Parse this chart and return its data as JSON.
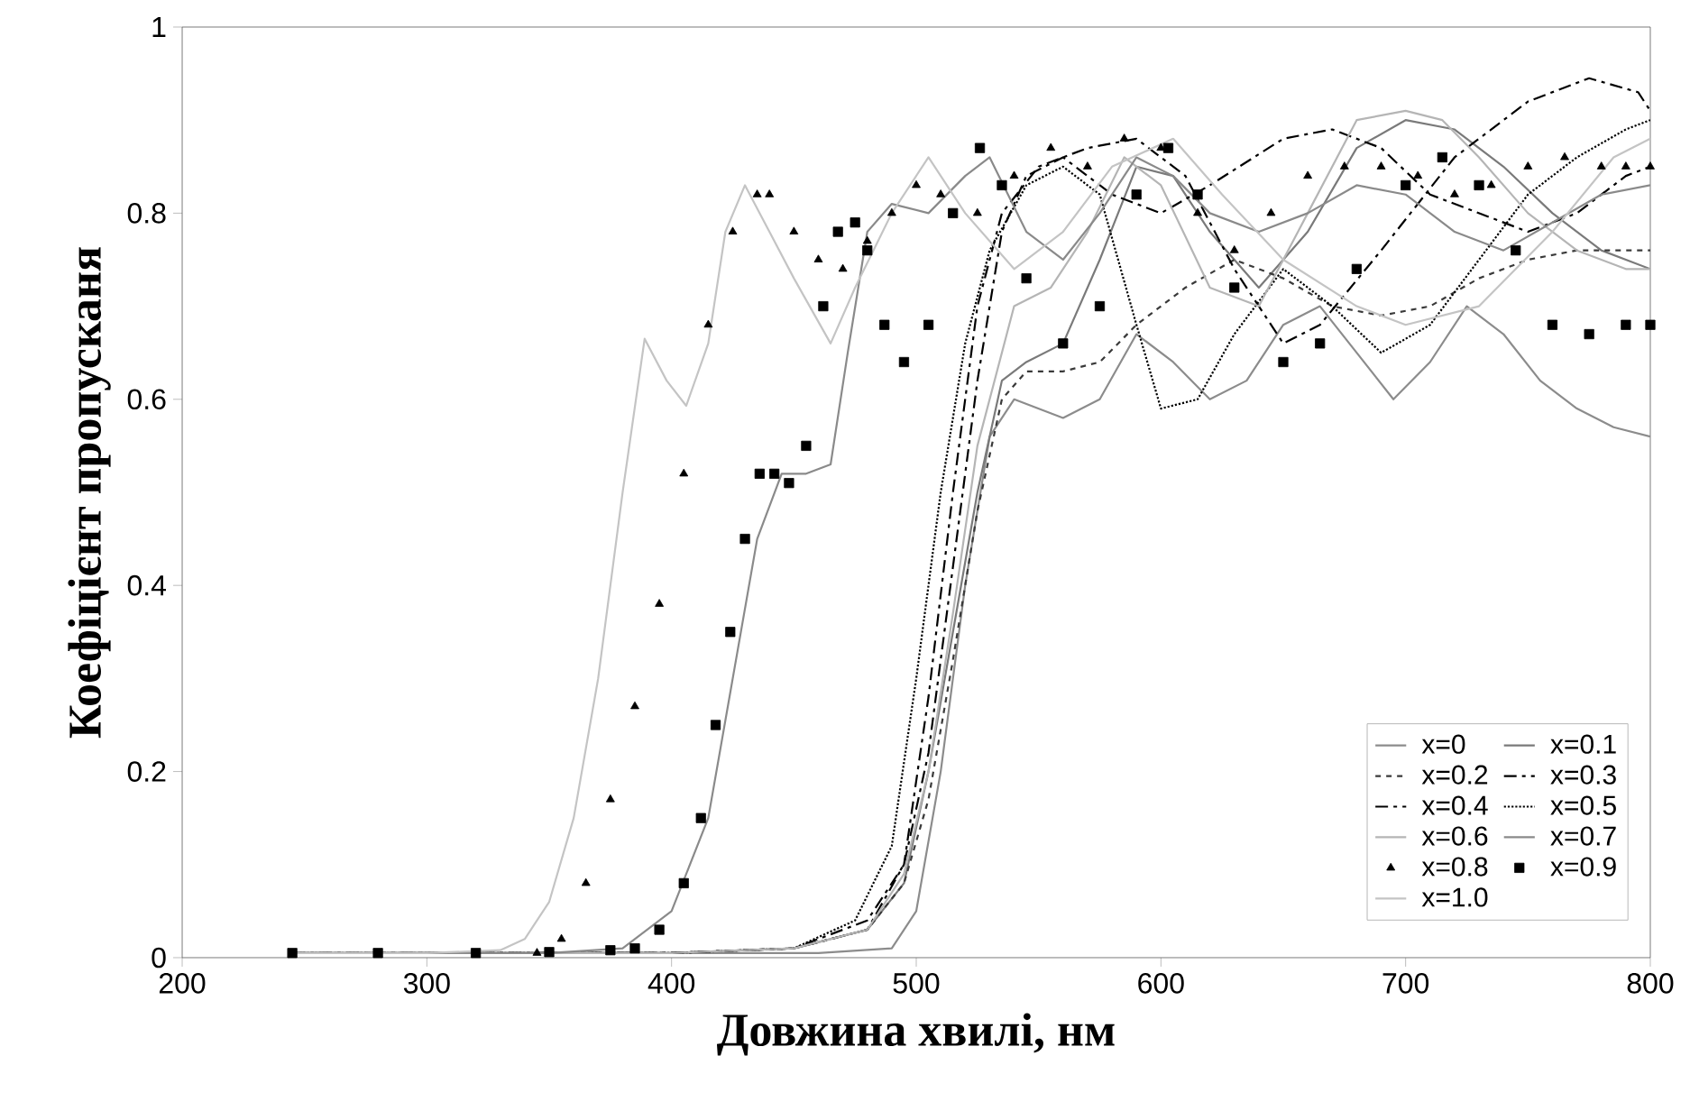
{
  "chart_data": {
    "type": "line",
    "xlabel": "Довжина хвилі, нм",
    "ylabel": "Коефіцієнт пропусканя",
    "xlim": [
      200,
      800
    ],
    "ylim": [
      0,
      1
    ],
    "xticks": [
      200,
      300,
      400,
      500,
      600,
      700,
      800
    ],
    "yticks": [
      0,
      0.2,
      0.4,
      0.6,
      0.8,
      1
    ],
    "legend": "bottom right",
    "series": [
      {
        "name": "x=0",
        "color": "#8c8c8c",
        "line_style": "solid",
        "x": [
          245,
          300,
          400,
          460,
          490,
          500,
          510,
          520,
          530,
          540,
          550,
          560,
          575,
          590,
          605,
          620,
          635,
          650,
          665,
          680,
          695,
          710,
          725,
          740,
          755,
          770,
          785,
          800
        ],
        "values": [
          0.005,
          0.005,
          0.005,
          0.005,
          0.01,
          0.05,
          0.2,
          0.4,
          0.56,
          0.6,
          0.59,
          0.58,
          0.6,
          0.67,
          0.64,
          0.6,
          0.62,
          0.68,
          0.7,
          0.65,
          0.6,
          0.64,
          0.7,
          0.67,
          0.62,
          0.59,
          0.57,
          0.56
        ]
      },
      {
        "name": "x=0.1",
        "color": "#7a7a7a",
        "line_style": "solid",
        "x": [
          245,
          300,
          400,
          450,
          480,
          495,
          505,
          515,
          525,
          535,
          545,
          560,
          575,
          590,
          605,
          620,
          640,
          660,
          680,
          700,
          720,
          740,
          760,
          780,
          800
        ],
        "values": [
          0.005,
          0.005,
          0.005,
          0.01,
          0.03,
          0.08,
          0.2,
          0.35,
          0.5,
          0.62,
          0.64,
          0.66,
          0.75,
          0.85,
          0.84,
          0.78,
          0.72,
          0.78,
          0.87,
          0.9,
          0.89,
          0.85,
          0.8,
          0.76,
          0.74
        ]
      },
      {
        "name": "x=0.2",
        "color": "#3a3a3a",
        "line_style": "dashed",
        "x": [
          245,
          300,
          400,
          450,
          480,
          495,
          505,
          515,
          525,
          535,
          545,
          560,
          575,
          590,
          610,
          630,
          650,
          670,
          690,
          710,
          730,
          750,
          770,
          790,
          800
        ],
        "values": [
          0.005,
          0.005,
          0.005,
          0.01,
          0.03,
          0.08,
          0.17,
          0.32,
          0.48,
          0.6,
          0.63,
          0.63,
          0.64,
          0.68,
          0.72,
          0.75,
          0.73,
          0.7,
          0.69,
          0.7,
          0.73,
          0.75,
          0.76,
          0.76,
          0.76
        ]
      },
      {
        "name": "x=0.3",
        "color": "#000000",
        "line_style": "dashdot",
        "x": [
          245,
          400,
          450,
          480,
          495,
          505,
          515,
          525,
          535,
          545,
          560,
          580,
          600,
          620,
          650,
          670,
          690,
          710,
          730,
          750,
          770,
          790,
          800
        ],
        "values": [
          0.005,
          0.005,
          0.01,
          0.04,
          0.1,
          0.22,
          0.42,
          0.62,
          0.78,
          0.84,
          0.86,
          0.82,
          0.8,
          0.83,
          0.88,
          0.89,
          0.87,
          0.82,
          0.8,
          0.78,
          0.8,
          0.84,
          0.85
        ]
      },
      {
        "name": "x=0.4",
        "color": "#000000",
        "line_style": "dashdot",
        "x": [
          245,
          400,
          450,
          480,
          495,
          505,
          515,
          525,
          535,
          550,
          570,
          590,
          610,
          630,
          650,
          665,
          690,
          720,
          750,
          775,
          795,
          800
        ],
        "values": [
          0.005,
          0.005,
          0.01,
          0.03,
          0.1,
          0.28,
          0.5,
          0.7,
          0.8,
          0.85,
          0.87,
          0.88,
          0.84,
          0.74,
          0.66,
          0.68,
          0.76,
          0.86,
          0.92,
          0.945,
          0.93,
          0.91
        ]
      },
      {
        "name": "x=0.5",
        "color": "#000000",
        "line_style": "dotted",
        "x": [
          245,
          400,
          450,
          475,
          490,
          500,
          510,
          520,
          530,
          545,
          560,
          575,
          590,
          600,
          615,
          630,
          650,
          670,
          690,
          710,
          730,
          750,
          770,
          790,
          800
        ],
        "values": [
          0.005,
          0.005,
          0.01,
          0.04,
          0.12,
          0.3,
          0.5,
          0.66,
          0.76,
          0.83,
          0.85,
          0.82,
          0.68,
          0.59,
          0.6,
          0.67,
          0.74,
          0.7,
          0.65,
          0.68,
          0.75,
          0.82,
          0.86,
          0.89,
          0.9
        ]
      },
      {
        "name": "x=0.6",
        "color": "#b5b5b5",
        "line_style": "solid",
        "x": [
          245,
          300,
          400,
          450,
          480,
          495,
          505,
          515,
          525,
          540,
          555,
          570,
          585,
          600,
          620,
          640,
          660,
          680,
          700,
          715,
          730,
          750,
          770,
          790,
          800
        ],
        "values": [
          0.005,
          0.005,
          0.005,
          0.01,
          0.03,
          0.09,
          0.2,
          0.37,
          0.55,
          0.7,
          0.72,
          0.78,
          0.86,
          0.83,
          0.72,
          0.7,
          0.8,
          0.9,
          0.91,
          0.9,
          0.86,
          0.8,
          0.76,
          0.74,
          0.74
        ]
      },
      {
        "name": "x=0.7",
        "color": "#8a8a8a",
        "line_style": "solid",
        "x": [
          245,
          300,
          350,
          380,
          400,
          415,
          425,
          435,
          445,
          455,
          465,
          472,
          480,
          490,
          505,
          520,
          530,
          545,
          560,
          575,
          590,
          605,
          620,
          640,
          660,
          680,
          700,
          720,
          740,
          760,
          780,
          800
        ],
        "values": [
          0.005,
          0.005,
          0.005,
          0.01,
          0.05,
          0.15,
          0.3,
          0.45,
          0.52,
          0.52,
          0.53,
          0.65,
          0.78,
          0.81,
          0.8,
          0.84,
          0.86,
          0.78,
          0.75,
          0.8,
          0.86,
          0.84,
          0.8,
          0.78,
          0.8,
          0.83,
          0.82,
          0.78,
          0.76,
          0.79,
          0.82,
          0.83
        ]
      },
      {
        "name": "x=0.8",
        "type": "scatter",
        "color": "#000000",
        "marker": "triangle",
        "x": [
          345,
          355,
          365,
          375,
          385,
          395,
          405,
          415,
          425,
          435,
          440,
          450,
          460,
          470,
          480,
          490,
          500,
          510,
          525,
          540,
          555,
          570,
          585,
          600,
          615,
          630,
          645,
          660,
          675,
          690,
          705,
          720,
          735,
          750,
          765,
          780,
          790,
          800
        ],
        "values": [
          0.005,
          0.02,
          0.08,
          0.17,
          0.27,
          0.38,
          0.52,
          0.68,
          0.78,
          0.82,
          0.82,
          0.78,
          0.75,
          0.74,
          0.77,
          0.8,
          0.83,
          0.82,
          0.8,
          0.84,
          0.87,
          0.85,
          0.88,
          0.87,
          0.8,
          0.76,
          0.8,
          0.84,
          0.85,
          0.85,
          0.84,
          0.82,
          0.83,
          0.85,
          0.86,
          0.85,
          0.85,
          0.85
        ]
      },
      {
        "name": "x=0.9",
        "type": "scatter",
        "color": "#000000",
        "marker": "square",
        "x": [
          245,
          280,
          320,
          350,
          375,
          385,
          395,
          405,
          412,
          418,
          424,
          430,
          436,
          442,
          448,
          455,
          462,
          468,
          475,
          480,
          487,
          495,
          505,
          515,
          526,
          535,
          545,
          560,
          575,
          590,
          603,
          615,
          630,
          650,
          665,
          680,
          700,
          715,
          730,
          745,
          760,
          775,
          790,
          800
        ],
        "values": [
          0.005,
          0.005,
          0.005,
          0.006,
          0.008,
          0.01,
          0.03,
          0.08,
          0.15,
          0.25,
          0.35,
          0.45,
          0.52,
          0.52,
          0.51,
          0.55,
          0.7,
          0.78,
          0.79,
          0.76,
          0.68,
          0.64,
          0.68,
          0.8,
          0.87,
          0.83,
          0.73,
          0.66,
          0.7,
          0.82,
          0.87,
          0.82,
          0.72,
          0.64,
          0.66,
          0.74,
          0.83,
          0.86,
          0.83,
          0.76,
          0.68,
          0.67,
          0.68,
          0.68
        ]
      },
      {
        "name": "x=1.0",
        "color": "#c4c4c4",
        "line_style": "solid",
        "x": [
          245,
          300,
          330,
          340,
          350,
          360,
          370,
          380,
          389,
          398,
          406,
          415,
          422,
          430,
          440,
          450,
          465,
          475,
          490,
          505,
          520,
          540,
          560,
          580,
          605,
          625,
          650,
          680,
          700,
          730,
          760,
          785,
          800
        ],
        "values": [
          0.005,
          0.005,
          0.008,
          0.02,
          0.06,
          0.15,
          0.3,
          0.5,
          0.665,
          0.62,
          0.593,
          0.66,
          0.78,
          0.83,
          0.78,
          0.73,
          0.66,
          0.72,
          0.8,
          0.86,
          0.8,
          0.74,
          0.78,
          0.85,
          0.88,
          0.82,
          0.75,
          0.7,
          0.68,
          0.7,
          0.78,
          0.86,
          0.88
        ]
      }
    ]
  }
}
